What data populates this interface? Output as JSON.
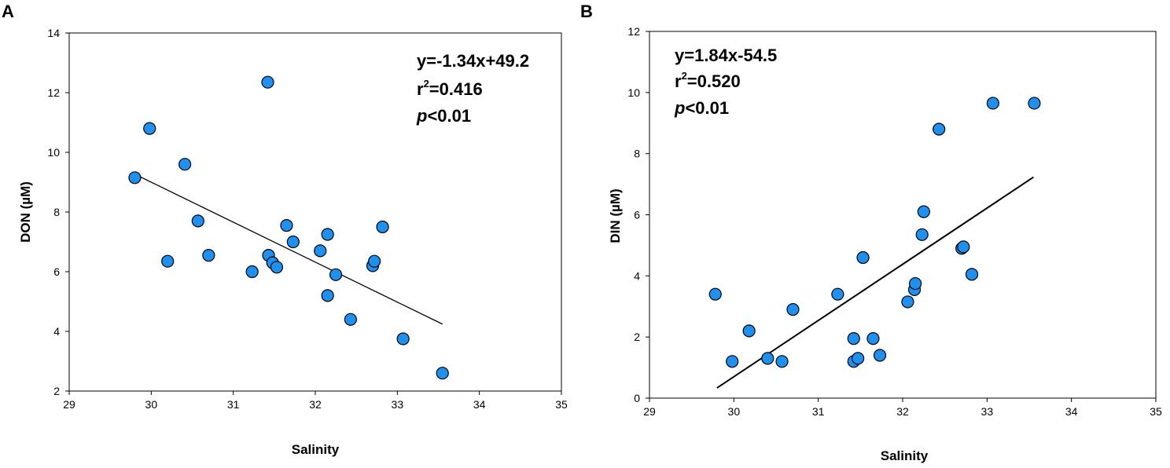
{
  "chart_data": [
    {
      "type": "scatter",
      "panel": "A",
      "xlabel": "Salinity",
      "ylabel": "DON (µM)",
      "xlim": [
        29,
        35
      ],
      "ylim": [
        2,
        14
      ],
      "xticks": [
        29,
        30,
        31,
        32,
        33,
        34,
        35
      ],
      "yticks": [
        2,
        4,
        6,
        8,
        10,
        12,
        14
      ],
      "equation": "y=-1.34x+49.2",
      "r2_prefix": "r",
      "r2_sup": "2",
      "r2_value": "=0.416",
      "p_italic": "p",
      "p_value": "<0.01",
      "regression": {
        "slope": -1.34,
        "intercept": 49.2,
        "x_range": [
          29.8,
          33.55
        ]
      },
      "marker_color": "#1e90f0",
      "points": [
        {
          "x": 29.8,
          "y": 9.15
        },
        {
          "x": 29.98,
          "y": 10.8
        },
        {
          "x": 30.2,
          "y": 6.35
        },
        {
          "x": 30.41,
          "y": 9.6
        },
        {
          "x": 30.57,
          "y": 7.7
        },
        {
          "x": 30.7,
          "y": 6.55
        },
        {
          "x": 31.42,
          "y": 12.35
        },
        {
          "x": 31.23,
          "y": 6.0
        },
        {
          "x": 31.43,
          "y": 6.55
        },
        {
          "x": 31.48,
          "y": 6.3
        },
        {
          "x": 31.53,
          "y": 6.15
        },
        {
          "x": 31.65,
          "y": 7.55
        },
        {
          "x": 31.73,
          "y": 7.0
        },
        {
          "x": 32.06,
          "y": 6.7
        },
        {
          "x": 32.15,
          "y": 7.25
        },
        {
          "x": 32.15,
          "y": 5.2
        },
        {
          "x": 32.25,
          "y": 5.9
        },
        {
          "x": 32.43,
          "y": 4.4
        },
        {
          "x": 32.7,
          "y": 6.2
        },
        {
          "x": 32.72,
          "y": 6.35
        },
        {
          "x": 32.82,
          "y": 7.5
        },
        {
          "x": 33.07,
          "y": 3.75
        },
        {
          "x": 33.55,
          "y": 2.6
        }
      ]
    },
    {
      "type": "scatter",
      "panel": "B",
      "xlabel": "Salinity",
      "ylabel": "DIN (µM)",
      "xlim": [
        29,
        35
      ],
      "ylim": [
        0,
        12
      ],
      "xticks": [
        29,
        30,
        31,
        32,
        33,
        34,
        35
      ],
      "yticks": [
        0,
        2,
        4,
        6,
        8,
        10,
        12
      ],
      "equation": "y=1.84x-54.5",
      "r2_prefix": "r",
      "r2_sup": "2",
      "r2_value": "=0.520",
      "p_italic": "p",
      "p_value": "<0.01",
      "regression": {
        "slope": 1.84,
        "intercept": -54.5,
        "x_range": [
          29.8,
          33.55
        ]
      },
      "marker_color": "#1e90f0",
      "points": [
        {
          "x": 29.78,
          "y": 3.4
        },
        {
          "x": 29.98,
          "y": 1.2
        },
        {
          "x": 30.18,
          "y": 2.2
        },
        {
          "x": 30.4,
          "y": 1.3
        },
        {
          "x": 30.57,
          "y": 1.2
        },
        {
          "x": 30.7,
          "y": 2.9
        },
        {
          "x": 31.23,
          "y": 3.4
        },
        {
          "x": 31.42,
          "y": 1.95
        },
        {
          "x": 31.42,
          "y": 1.2
        },
        {
          "x": 31.47,
          "y": 1.3
        },
        {
          "x": 31.53,
          "y": 4.6
        },
        {
          "x": 31.65,
          "y": 1.95
        },
        {
          "x": 31.73,
          "y": 1.4
        },
        {
          "x": 32.06,
          "y": 3.15
        },
        {
          "x": 32.14,
          "y": 3.55
        },
        {
          "x": 32.15,
          "y": 3.75
        },
        {
          "x": 32.23,
          "y": 5.35
        },
        {
          "x": 32.25,
          "y": 6.1
        },
        {
          "x": 32.43,
          "y": 8.8
        },
        {
          "x": 32.7,
          "y": 4.9
        },
        {
          "x": 32.72,
          "y": 4.95
        },
        {
          "x": 32.82,
          "y": 4.05
        },
        {
          "x": 33.07,
          "y": 9.65
        },
        {
          "x": 33.56,
          "y": 9.65
        }
      ]
    }
  ]
}
